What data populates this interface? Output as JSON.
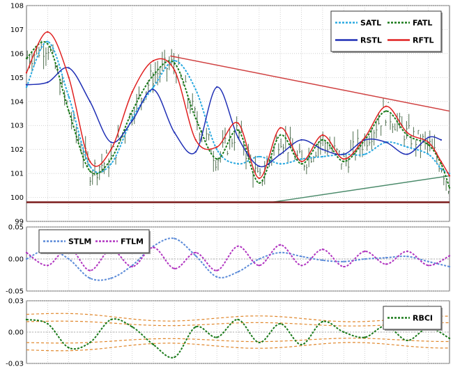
{
  "chart_data": [
    {
      "type": "line",
      "panel": "price",
      "title": "",
      "ylim": [
        99,
        108
      ],
      "y_ticks": [
        "99",
        "100",
        "101",
        "102",
        "103",
        "104",
        "105",
        "106",
        "107",
        "108"
      ],
      "grid": true,
      "legend_position": "top-right",
      "x_index_range": [
        0,
        100
      ],
      "series": [
        {
          "name": "SATL",
          "color": "#29a9e0",
          "style": "dashed",
          "x": [
            0,
            5,
            10,
            15,
            20,
            25,
            30,
            35,
            40,
            45,
            50,
            55,
            60,
            65,
            70,
            75,
            80,
            85,
            90,
            95,
            98,
            100
          ],
          "values": [
            104.6,
            106.5,
            104.2,
            101.3,
            101.4,
            103.3,
            104.6,
            105.7,
            104.5,
            102.0,
            101.4,
            101.7,
            101.4,
            101.6,
            101.7,
            101.8,
            101.8,
            102.3,
            102.1,
            101.8,
            101.2,
            101.0
          ]
        },
        {
          "name": "FATL",
          "color": "#1a7a1a",
          "style": "dashed",
          "x": [
            0,
            5,
            10,
            15,
            20,
            25,
            30,
            35,
            40,
            45,
            50,
            55,
            60,
            65,
            70,
            75,
            80,
            85,
            90,
            95,
            98,
            100
          ],
          "values": [
            105.8,
            106.4,
            103.6,
            101.1,
            101.6,
            103.6,
            105.1,
            105.6,
            103.3,
            101.6,
            102.8,
            100.6,
            102.6,
            101.4,
            102.4,
            101.5,
            102.4,
            103.6,
            102.6,
            102.2,
            101.4,
            100.4
          ]
        },
        {
          "name": "RSTL",
          "color": "#1f2fb5",
          "style": "solid",
          "x": [
            0,
            5,
            10,
            15,
            20,
            25,
            30,
            35,
            40,
            45,
            50,
            55,
            60,
            65,
            70,
            75,
            80,
            85,
            90,
            95,
            98
          ],
          "values": [
            104.7,
            104.8,
            105.4,
            104.0,
            102.3,
            103.2,
            104.5,
            102.7,
            101.9,
            104.6,
            102.5,
            101.3,
            101.8,
            102.4,
            102.0,
            101.8,
            102.4,
            102.3,
            101.8,
            102.5,
            102.4
          ]
        },
        {
          "name": "RFTL",
          "color": "#e02020",
          "style": "solid",
          "x": [
            0,
            5,
            10,
            15,
            20,
            25,
            30,
            35,
            40,
            45,
            50,
            55,
            60,
            65,
            70,
            75,
            80,
            85,
            90,
            95,
            98,
            100
          ],
          "values": [
            105.2,
            106.9,
            105.0,
            101.5,
            102.0,
            104.4,
            105.7,
            105.3,
            102.4,
            102.1,
            103.1,
            100.8,
            102.9,
            101.5,
            102.6,
            101.6,
            102.5,
            103.8,
            102.7,
            102.3,
            101.5,
            100.9
          ]
        }
      ],
      "annotations": [
        {
          "kind": "resistance-trendline",
          "color": "#d04040",
          "x": [
            34,
            100
          ],
          "values": [
            105.9,
            103.6
          ]
        },
        {
          "kind": "support-trendline",
          "color": "#4a8a6a",
          "x": [
            58,
            100
          ],
          "values": [
            99.8,
            100.9
          ]
        },
        {
          "kind": "horizontal-support",
          "color": "#7a1a1a",
          "value": 99.8
        }
      ]
    },
    {
      "type": "line",
      "panel": "momentum",
      "title": "",
      "ylim": [
        -0.05,
        0.05
      ],
      "y_ticks": [
        "-0.05",
        "0.00",
        "0.05"
      ],
      "grid": true,
      "legend_position": "top-left",
      "series": [
        {
          "name": "STLM",
          "color": "#5a8ad8",
          "style": "dashed",
          "x": [
            0,
            5,
            10,
            15,
            20,
            25,
            30,
            35,
            40,
            45,
            50,
            55,
            60,
            65,
            70,
            75,
            80,
            85,
            90,
            95,
            100
          ],
          "values": [
            0.0,
            0.015,
            0.0,
            -0.03,
            -0.03,
            -0.01,
            0.02,
            0.032,
            0.005,
            -0.028,
            -0.02,
            0.0,
            0.01,
            0.004,
            -0.002,
            -0.004,
            0.0,
            0.002,
            0.004,
            -0.004,
            -0.012
          ]
        },
        {
          "name": "FTLM",
          "color": "#b033c0",
          "style": "dashed",
          "x": [
            0,
            5,
            10,
            15,
            20,
            25,
            30,
            35,
            40,
            45,
            50,
            55,
            60,
            65,
            70,
            75,
            80,
            85,
            90,
            95,
            100
          ],
          "values": [
            0.01,
            -0.01,
            0.018,
            -0.018,
            0.015,
            -0.012,
            0.018,
            -0.015,
            0.01,
            -0.018,
            0.02,
            -0.01,
            0.022,
            -0.01,
            0.015,
            -0.012,
            0.012,
            -0.008,
            0.012,
            -0.01,
            0.005
          ]
        }
      ]
    },
    {
      "type": "line",
      "panel": "rbci",
      "title": "",
      "ylim": [
        -0.03,
        0.03
      ],
      "y_ticks": [
        "-0.03",
        "0.00",
        "0.03"
      ],
      "grid": true,
      "legend_position": "top-right",
      "series": [
        {
          "name": "RBCI",
          "color": "#1a7a1a",
          "style": "dashed",
          "x": [
            0,
            5,
            10,
            15,
            20,
            25,
            30,
            35,
            40,
            45,
            50,
            55,
            60,
            65,
            70,
            75,
            80,
            85,
            90,
            95,
            100
          ],
          "values": [
            0.012,
            0.008,
            -0.015,
            -0.01,
            0.012,
            0.005,
            -0.012,
            -0.024,
            0.005,
            -0.005,
            0.012,
            -0.01,
            0.008,
            -0.012,
            0.01,
            0.0,
            -0.005,
            0.006,
            -0.008,
            0.004,
            -0.006
          ]
        }
      ],
      "bands": {
        "color": "#e0862a",
        "levels": [
          0.017,
          0.01,
          -0.01,
          -0.017
        ]
      }
    }
  ]
}
